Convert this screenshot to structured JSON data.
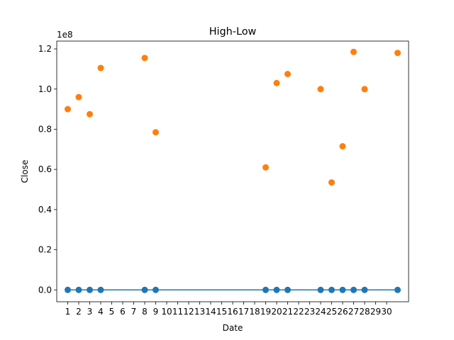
{
  "chart_data": {
    "type": "scatter",
    "title": "High-Low",
    "xlabel": "Date",
    "ylabel": "Close",
    "y_offset_label": "1e8",
    "xlim": [
      0,
      32
    ],
    "ylim": [
      -5900000,
      123900000
    ],
    "x_ticks": [
      "1",
      "2",
      "3",
      "4",
      "5",
      "6",
      "7",
      "8",
      "9",
      "10",
      "11",
      "12",
      "13",
      "14",
      "15",
      "16",
      "17",
      "18",
      "19",
      "20",
      "21",
      "22",
      "23",
      "24",
      "25",
      "26",
      "27",
      "28",
      "29",
      "30"
    ],
    "y_ticks": [
      {
        "value": 0,
        "label": "0.0"
      },
      {
        "value": 20000000,
        "label": "0.2"
      },
      {
        "value": 40000000,
        "label": "0.4"
      },
      {
        "value": 60000000,
        "label": "0.6"
      },
      {
        "value": 80000000,
        "label": "0.8"
      },
      {
        "value": 100000000,
        "label": "1.0"
      },
      {
        "value": 120000000,
        "label": "1.2"
      }
    ],
    "grid": false,
    "series": [
      {
        "color": "#1f77b4",
        "style": "line-markers",
        "x": [
          1,
          2,
          3,
          4,
          8,
          9,
          19,
          20,
          21,
          24,
          25,
          26,
          27,
          28,
          31
        ],
        "y": [
          0,
          0,
          0,
          0,
          0,
          0,
          0,
          0,
          0,
          0,
          0,
          0,
          0,
          0,
          0
        ]
      },
      {
        "color": "#ff7f0e",
        "style": "markers",
        "x": [
          1,
          2,
          3,
          4,
          8,
          9,
          19,
          20,
          21,
          24,
          25,
          26,
          27,
          28,
          31
        ],
        "y": [
          90000000,
          96000000,
          87500000,
          110500000,
          115500000,
          78500000,
          61000000,
          103000000,
          107500000,
          100000000,
          53500000,
          71500000,
          118500000,
          100000000,
          118000000
        ]
      }
    ]
  }
}
